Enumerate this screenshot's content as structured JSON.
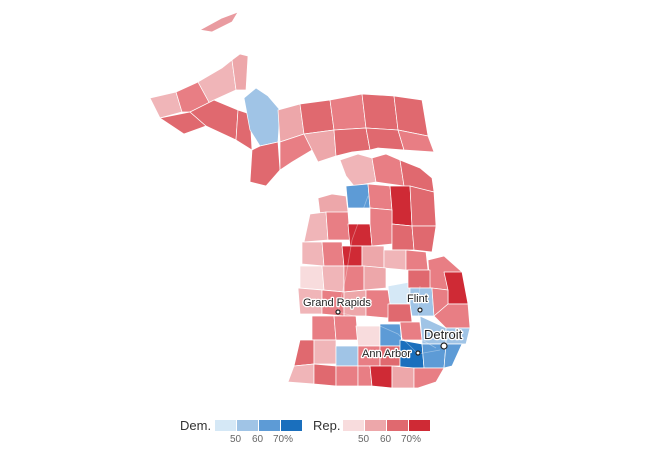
{
  "map": {
    "cities": [
      {
        "name": "Grand Rapids",
        "major": false
      },
      {
        "name": "Flint",
        "major": false
      },
      {
        "name": "Detroit",
        "major": true
      },
      {
        "name": "Ann Arbor",
        "major": false
      }
    ]
  },
  "legend": {
    "dem": {
      "label": "Dem.",
      "colors": [
        "#d5e8f6",
        "#a0c4e6",
        "#5d9bd6",
        "#1a6fbd"
      ],
      "ticks": [
        "50",
        "60",
        "70%"
      ]
    },
    "rep": {
      "label": "Rep.",
      "colors": [
        "#f8dcdd",
        "#eda7aa",
        "#e0696f",
        "#cf2a35"
      ],
      "ticks": [
        "50",
        "60",
        "70%"
      ]
    }
  }
}
